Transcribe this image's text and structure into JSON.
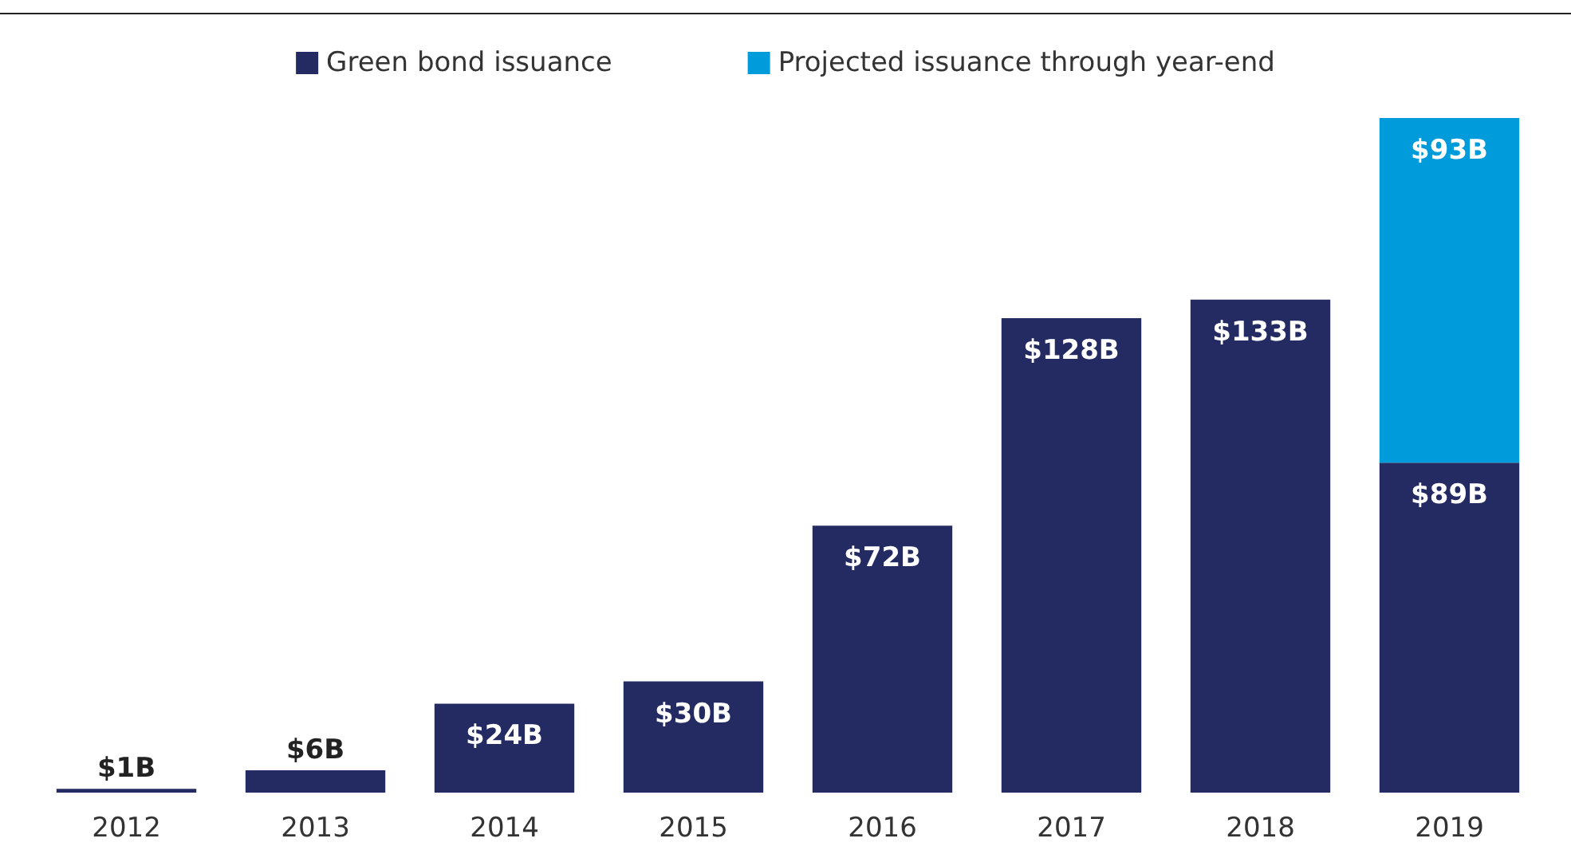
{
  "chart_data": {
    "type": "bar",
    "stacked": true,
    "legend": "top",
    "categories": [
      "2012",
      "2013",
      "2014",
      "2015",
      "2016",
      "2017",
      "2018",
      "2019"
    ],
    "series": [
      {
        "name": "Green bond issuance",
        "color": "#242b62",
        "values": [
          1,
          6,
          24,
          30,
          72,
          128,
          133,
          89
        ],
        "value_labels": [
          "$1B",
          "$6B",
          "$24B",
          "$30B",
          "$72B",
          "$128B",
          "$133B",
          "$89B"
        ]
      },
      {
        "name": "Projected issuance through year-end",
        "color": "#009bdb",
        "values": [
          null,
          null,
          null,
          null,
          null,
          null,
          null,
          93
        ],
        "value_labels": [
          null,
          null,
          null,
          null,
          null,
          null,
          null,
          "$93B"
        ]
      }
    ]
  }
}
